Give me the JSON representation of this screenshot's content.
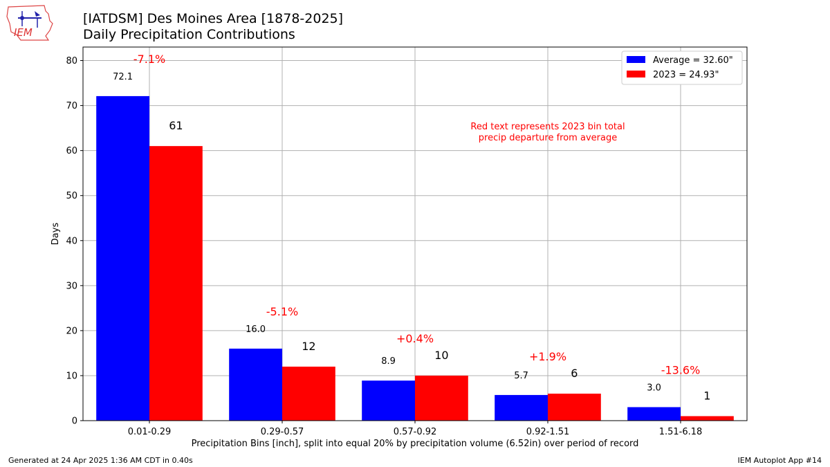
{
  "header": {
    "title": "[IATDSM] Des Moines Area [1878-2025]",
    "subtitle": "Daily Precipitation Contributions"
  },
  "logo": {
    "text": "IEM"
  },
  "footer": {
    "generated": "Generated at 24 Apr 2025 1:36 AM CDT in 0.40s",
    "app": "IEM Autoplot App #14"
  },
  "colors": {
    "average": "#0000ff",
    "year": "#ff0000",
    "annotation": "#ff0000",
    "grid": "#b0b0b0"
  },
  "chart_data": {
    "type": "bar",
    "xlabel": "Precipitation Bins [inch], split into equal 20% by precipitation volume (6.52in) over period of record",
    "ylabel": "Days",
    "ylim": [
      0,
      83
    ],
    "yticks": [
      0,
      10,
      20,
      30,
      40,
      50,
      60,
      70,
      80
    ],
    "grid": true,
    "legend_position": "top-right",
    "categories": [
      "0.01-0.29",
      "0.29-0.57",
      "0.57-0.92",
      "0.92-1.51",
      "1.51-6.18"
    ],
    "series": [
      {
        "name": "Average = 32.60\"",
        "color": "#0000ff",
        "values": [
          72.1,
          16.0,
          8.9,
          5.7,
          3.0
        ],
        "labels": [
          "72.1",
          "16.0",
          "8.9",
          "5.7",
          "3.0"
        ]
      },
      {
        "name": "2023 = 24.93\"",
        "color": "#ff0000",
        "values": [
          61,
          12,
          10,
          6,
          1
        ],
        "labels": [
          "61",
          "12",
          "10",
          "6",
          "1"
        ]
      }
    ],
    "departures": [
      "-7.1%",
      "-5.1%",
      "+0.4%",
      "+1.9%",
      "-13.6%"
    ],
    "note": [
      "Red text represents 2023 bin total",
      "precip departure from average"
    ]
  }
}
